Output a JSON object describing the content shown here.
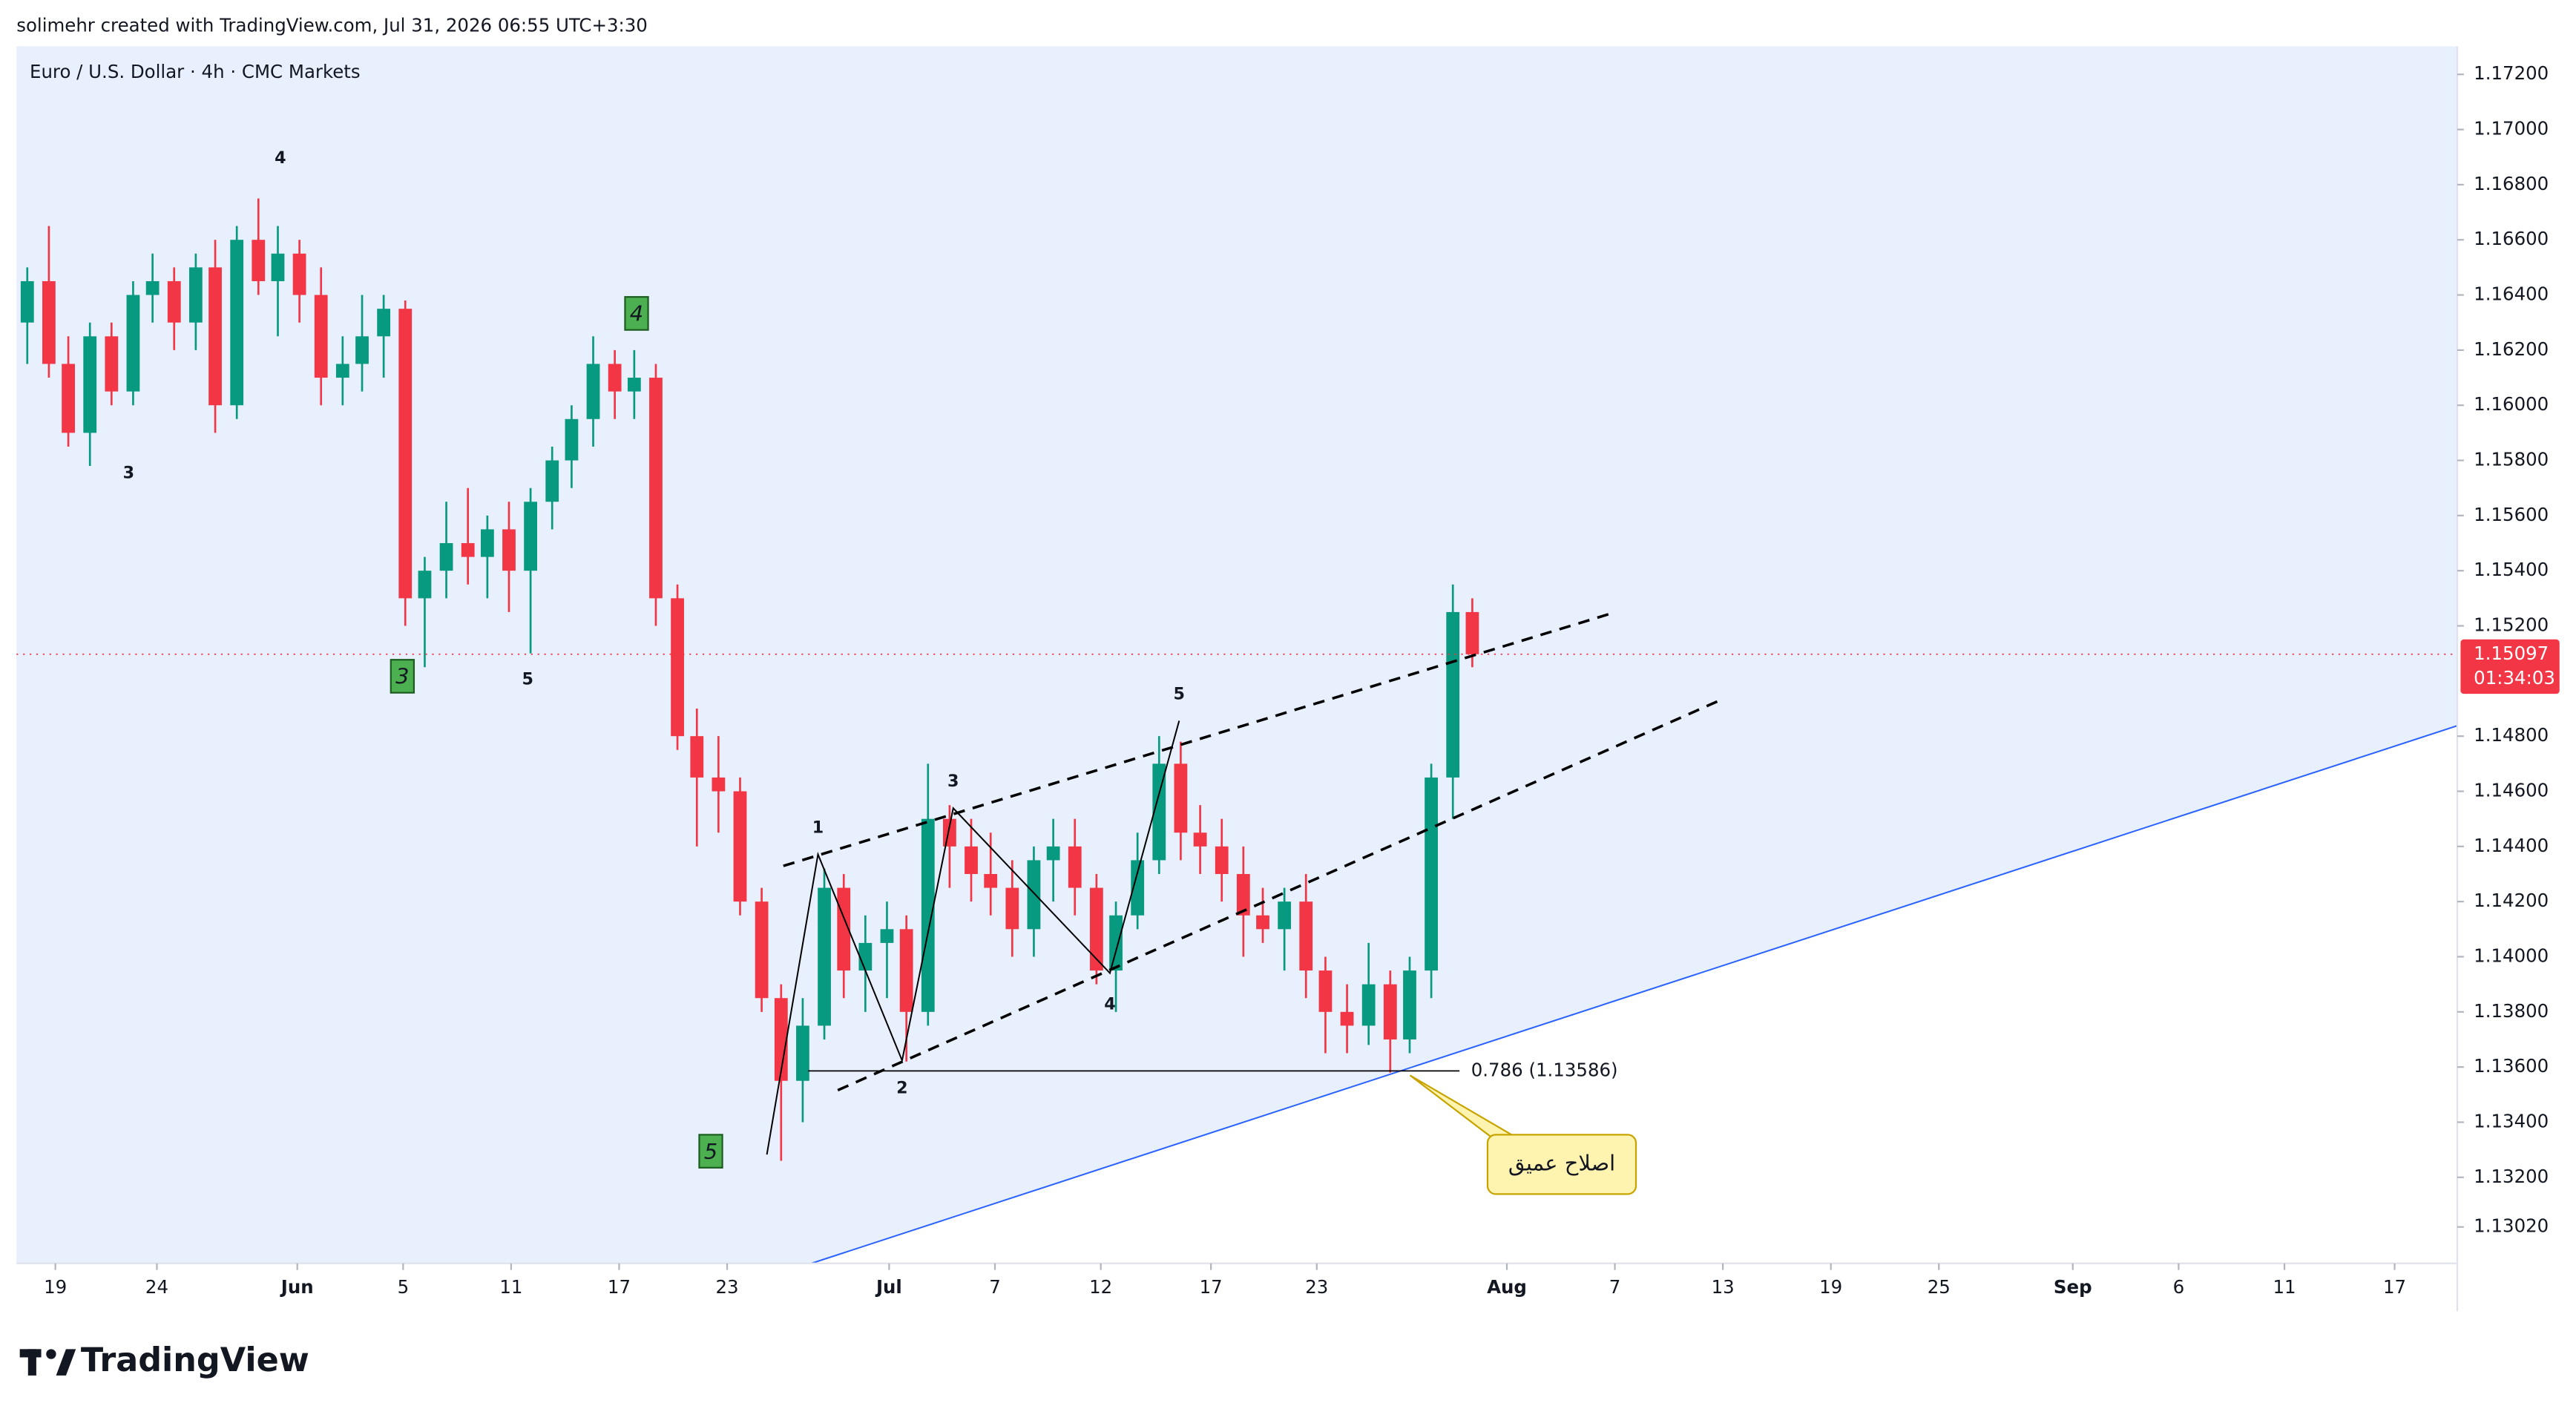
{
  "header": "solimehr created with TradingView.com, Jul 31, 2026 06:55 UTC+3:30",
  "footer_brand": "TradingView",
  "chart_data": {
    "type": "candlestick",
    "title": "Euro / U.S. Dollar · 4h · CMC Markets",
    "up_color": "#089981",
    "down_color": "#f23645",
    "x": [
      0.5,
      1.5,
      2.4,
      3.4,
      4.4,
      5.4,
      6.3,
      7.3,
      8.3,
      9.2,
      10.2,
      11.2,
      12.1,
      13.1,
      14.1,
      15.1,
      16,
      17,
      18,
      18.9,
      19.9,
      20.9,
      21.8,
      22.8,
      23.8,
      24.8,
      25.7,
      26.7,
      27.7,
      28.6,
      29.6,
      30.6,
      31.5,
      32.5,
      33.5,
      34.5,
      35.4,
      36.4,
      37.4,
      38.3,
      39.3,
      40.3,
      41.2,
      42.2,
      43.2,
      44.2,
      45.1,
      46.1,
      47.1,
      48,
      49,
      50,
      50.9,
      51.9,
      52.9,
      53.9,
      54.8,
      55.8,
      56.8,
      57.7,
      58.7,
      59.7,
      60.6,
      61.6,
      62.6,
      63.6,
      64.5,
      65.5,
      66.5,
      67.4
    ],
    "ohlc": [
      [
        1.163,
        1.165,
        1.1615,
        1.1645
      ],
      [
        1.1645,
        1.1665,
        1.161,
        1.1615
      ],
      [
        1.1615,
        1.1625,
        1.1585,
        1.159
      ],
      [
        1.159,
        1.163,
        1.1578,
        1.1625
      ],
      [
        1.1625,
        1.163,
        1.16,
        1.1605
      ],
      [
        1.1605,
        1.1645,
        1.16,
        1.164
      ],
      [
        1.164,
        1.1655,
        1.163,
        1.1645
      ],
      [
        1.1645,
        1.165,
        1.162,
        1.163
      ],
      [
        1.163,
        1.1655,
        1.162,
        1.165
      ],
      [
        1.165,
        1.166,
        1.159,
        1.16
      ],
      [
        1.16,
        1.1665,
        1.1595,
        1.166
      ],
      [
        1.166,
        1.1675,
        1.164,
        1.1645
      ],
      [
        1.1645,
        1.1665,
        1.1625,
        1.1655
      ],
      [
        1.1655,
        1.166,
        1.163,
        1.164
      ],
      [
        1.164,
        1.165,
        1.16,
        1.161
      ],
      [
        1.161,
        1.1625,
        1.16,
        1.1615
      ],
      [
        1.1615,
        1.164,
        1.1605,
        1.1625
      ],
      [
        1.1625,
        1.164,
        1.161,
        1.1635
      ],
      [
        1.1635,
        1.1638,
        1.152,
        1.153
      ],
      [
        1.153,
        1.1545,
        1.1505,
        1.154
      ],
      [
        1.154,
        1.1565,
        1.153,
        1.155
      ],
      [
        1.155,
        1.157,
        1.1535,
        1.1545
      ],
      [
        1.1545,
        1.156,
        1.153,
        1.1555
      ],
      [
        1.1555,
        1.1565,
        1.1525,
        1.154
      ],
      [
        1.154,
        1.157,
        1.151,
        1.1565
      ],
      [
        1.1565,
        1.1585,
        1.1555,
        1.158
      ],
      [
        1.158,
        1.16,
        1.157,
        1.1595
      ],
      [
        1.1595,
        1.1625,
        1.1585,
        1.1615
      ],
      [
        1.1615,
        1.162,
        1.1595,
        1.1605
      ],
      [
        1.1605,
        1.162,
        1.1595,
        1.161
      ],
      [
        1.161,
        1.1615,
        1.152,
        1.153
      ],
      [
        1.153,
        1.1535,
        1.1475,
        1.148
      ],
      [
        1.148,
        1.149,
        1.144,
        1.1465
      ],
      [
        1.1465,
        1.148,
        1.1445,
        1.146
      ],
      [
        1.146,
        1.1465,
        1.1415,
        1.142
      ],
      [
        1.142,
        1.1425,
        1.138,
        1.1385
      ],
      [
        1.1385,
        1.139,
        1.1326,
        1.1355
      ],
      [
        1.1355,
        1.1385,
        1.134,
        1.1375
      ],
      [
        1.1375,
        1.1432,
        1.137,
        1.1425
      ],
      [
        1.1425,
        1.143,
        1.1385,
        1.1395
      ],
      [
        1.1395,
        1.1415,
        1.138,
        1.1405
      ],
      [
        1.1405,
        1.142,
        1.1385,
        1.141
      ],
      [
        1.141,
        1.1415,
        1.1362,
        1.138
      ],
      [
        1.138,
        1.147,
        1.1375,
        1.145
      ],
      [
        1.145,
        1.1455,
        1.1425,
        1.144
      ],
      [
        1.144,
        1.145,
        1.142,
        1.143
      ],
      [
        1.143,
        1.1445,
        1.1415,
        1.1425
      ],
      [
        1.1425,
        1.1435,
        1.14,
        1.141
      ],
      [
        1.141,
        1.144,
        1.14,
        1.1435
      ],
      [
        1.1435,
        1.145,
        1.142,
        1.144
      ],
      [
        1.144,
        1.145,
        1.1415,
        1.1425
      ],
      [
        1.1425,
        1.143,
        1.139,
        1.1395
      ],
      [
        1.1395,
        1.142,
        1.138,
        1.1415
      ],
      [
        1.1415,
        1.1445,
        1.141,
        1.1435
      ],
      [
        1.1435,
        1.148,
        1.143,
        1.147
      ],
      [
        1.147,
        1.1478,
        1.1435,
        1.1445
      ],
      [
        1.1445,
        1.1455,
        1.143,
        1.144
      ],
      [
        1.144,
        1.145,
        1.142,
        1.143
      ],
      [
        1.143,
        1.144,
        1.14,
        1.1415
      ],
      [
        1.1415,
        1.1425,
        1.1405,
        1.141
      ],
      [
        1.141,
        1.1425,
        1.1395,
        1.142
      ],
      [
        1.142,
        1.143,
        1.1385,
        1.1395
      ],
      [
        1.1395,
        1.14,
        1.1365,
        1.138
      ],
      [
        1.138,
        1.139,
        1.1365,
        1.1375
      ],
      [
        1.1375,
        1.1405,
        1.1368,
        1.139
      ],
      [
        1.139,
        1.1395,
        1.1358,
        1.137
      ],
      [
        1.137,
        1.14,
        1.1365,
        1.1395
      ],
      [
        1.1395,
        1.147,
        1.1385,
        1.1465
      ],
      [
        1.1465,
        1.1535,
        1.145,
        1.1525
      ],
      [
        1.1525,
        1.153,
        1.1505,
        1.15097
      ]
    ],
    "xlim": [
      0,
      113
    ],
    "xticks": [
      {
        "value": 1.8,
        "label": "19"
      },
      {
        "value": 6.5,
        "label": "24"
      },
      {
        "value": 13,
        "label": "Jun"
      },
      {
        "value": 17.9,
        "label": "5"
      },
      {
        "value": 22.9,
        "label": "11"
      },
      {
        "value": 27.9,
        "label": "17"
      },
      {
        "value": 32.9,
        "label": "23"
      },
      {
        "value": 40.4,
        "label": "Jul"
      },
      {
        "value": 45.3,
        "label": "7"
      },
      {
        "value": 50.2,
        "label": "12"
      },
      {
        "value": 55.3,
        "label": "17"
      },
      {
        "value": 60.2,
        "label": "23"
      },
      {
        "value": 69,
        "label": "Aug"
      },
      {
        "value": 74,
        "label": "7"
      },
      {
        "value": 79,
        "label": "13"
      },
      {
        "value": 84,
        "label": "19"
      },
      {
        "value": 89,
        "label": "25"
      },
      {
        "value": 95.2,
        "label": "Sep"
      },
      {
        "value": 100.1,
        "label": "6"
      },
      {
        "value": 105,
        "label": "11"
      },
      {
        "value": 110.1,
        "label": "17"
      }
    ],
    "ylim": [
      1.12888,
      1.17302
    ],
    "yticks": [
      {
        "value": 1.1302,
        "label": "1.13020"
      },
      {
        "value": 1.132,
        "label": "1.13200"
      },
      {
        "value": 1.134,
        "label": "1.13400"
      },
      {
        "value": 1.136,
        "label": "1.13600"
      },
      {
        "value": 1.138,
        "label": "1.13800"
      },
      {
        "value": 1.14,
        "label": "1.14000"
      },
      {
        "value": 1.142,
        "label": "1.14200"
      },
      {
        "value": 1.144,
        "label": "1.14400"
      },
      {
        "value": 1.146,
        "label": "1.14600"
      },
      {
        "value": 1.148,
        "label": "1.14800"
      },
      {
        "value": 1.152,
        "label": "1.15200"
      },
      {
        "value": 1.154,
        "label": "1.15400"
      },
      {
        "value": 1.156,
        "label": "1.15600"
      },
      {
        "value": 1.158,
        "label": "1.15800"
      },
      {
        "value": 1.16,
        "label": "1.16000"
      },
      {
        "value": 1.162,
        "label": "1.16200"
      },
      {
        "value": 1.164,
        "label": "1.16400"
      },
      {
        "value": 1.166,
        "label": "1.16600"
      },
      {
        "value": 1.168,
        "label": "1.16800"
      },
      {
        "value": 1.17,
        "label": "1.17000"
      },
      {
        "value": 1.172,
        "label": "1.17200"
      }
    ],
    "last_price": {
      "value": 1.15097,
      "label": "1.15097"
    },
    "countdown": "01:34:03",
    "fib": {
      "value": 1.13586,
      "label": "0.786 (1.13586)"
    },
    "callout": "اصلاح عمیق",
    "wave_labels": [
      "4",
      "3",
      "5",
      "1",
      "2",
      "3",
      "4",
      "5"
    ],
    "boxed_labels": [
      "3",
      "4",
      "5"
    ]
  }
}
